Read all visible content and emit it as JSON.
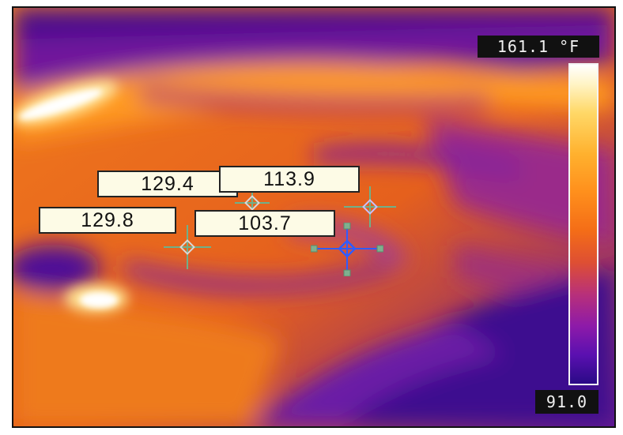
{
  "scale": {
    "max_label": "161.1 °F",
    "min_label": "91.0",
    "max_value": 161.1,
    "min_value": 91.0,
    "palette": "ironbow"
  },
  "spots": [
    {
      "id": "spot-1",
      "label": "129.4",
      "marker_color": "#6fb08a"
    },
    {
      "id": "spot-2",
      "label": "113.9",
      "marker_color": "#6fb08a"
    },
    {
      "id": "spot-3",
      "label": "129.8",
      "marker_color": "#6fb08a"
    },
    {
      "id": "spot-4",
      "label": "103.7",
      "marker_color": "#2f5cff"
    }
  ],
  "colors": {
    "frame_border": "#111111",
    "label_background": "#fdfbe6",
    "green_marker": "#6fb08a",
    "blue_marker": "#2f5cff"
  }
}
